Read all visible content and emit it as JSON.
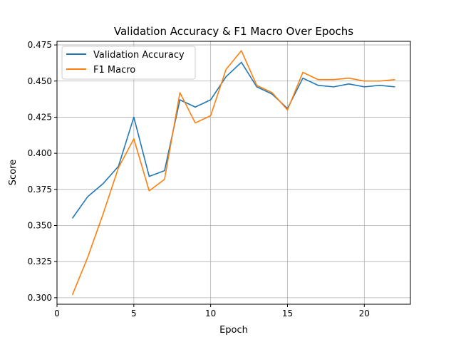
{
  "chart_data": {
    "type": "line",
    "title": "Validation Accuracy & F1 Macro Over Epochs",
    "xlabel": "Epoch",
    "ylabel": "Score",
    "xlim": [
      0,
      23
    ],
    "ylim": [
      0.2955,
      0.4775
    ],
    "x_ticks": [
      0,
      5,
      10,
      15,
      20
    ],
    "y_ticks": [
      0.3,
      0.325,
      0.35,
      0.375,
      0.4,
      0.425,
      0.45,
      0.475
    ],
    "grid": true,
    "legend_position": "top-left",
    "x": [
      1,
      2,
      3,
      4,
      5,
      6,
      7,
      8,
      9,
      10,
      11,
      12,
      13,
      14,
      15,
      16,
      17,
      18,
      19,
      20,
      21,
      22
    ],
    "series": [
      {
        "name": "Validation Accuracy",
        "color": "#1f77b4",
        "values": [
          0.355,
          0.37,
          0.379,
          0.391,
          0.425,
          0.384,
          0.388,
          0.437,
          0.432,
          0.437,
          0.453,
          0.463,
          0.446,
          0.441,
          0.431,
          0.452,
          0.447,
          0.446,
          0.448,
          0.446,
          0.447,
          0.446
        ]
      },
      {
        "name": "F1 Macro",
        "color": "#ff7f0e",
        "values": [
          0.302,
          0.328,
          0.358,
          0.39,
          0.41,
          0.374,
          0.382,
          0.442,
          0.421,
          0.426,
          0.458,
          0.471,
          0.447,
          0.442,
          0.43,
          0.456,
          0.451,
          0.451,
          0.452,
          0.45,
          0.45,
          0.451
        ]
      }
    ]
  }
}
